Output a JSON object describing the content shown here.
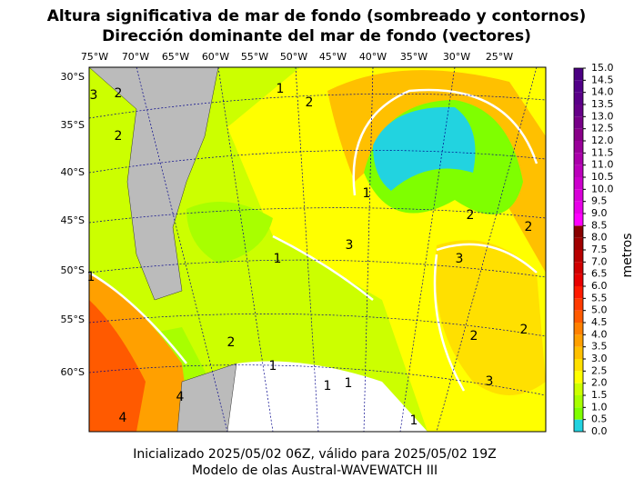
{
  "title": "Altura significativa de mar de fondo (sombreado y contornos)",
  "subtitle": "Dirección dominante del mar de fondo (vectores)",
  "map": {
    "lon_labels": [
      "75°W",
      "70°W",
      "65°W",
      "60°W",
      "55°W",
      "50°W",
      "45°W",
      "40°W",
      "35°W",
      "30°W",
      "25°W"
    ],
    "lat_labels": [
      "30°S",
      "35°S",
      "40°S",
      "45°S",
      "50°S",
      "55°S",
      "60°S"
    ],
    "contour_labels": [
      3,
      2,
      2,
      1,
      2,
      1,
      3,
      2,
      3,
      2,
      2,
      3,
      1,
      1,
      1,
      1,
      2,
      1,
      4,
      4,
      1,
      2
    ]
  },
  "colorbar": {
    "label": "metros",
    "ticks": [
      {
        "value": 0,
        "label": "0.0"
      },
      {
        "value": 0.5,
        "label": "0.5"
      },
      {
        "value": 1,
        "label": "1.0"
      },
      {
        "value": 1.5,
        "label": "1.5"
      },
      {
        "value": 2,
        "label": "2.0"
      },
      {
        "value": 2.5,
        "label": "2.5"
      },
      {
        "value": 3,
        "label": "3.0"
      },
      {
        "value": 3.5,
        "label": "3.5"
      },
      {
        "value": 4,
        "label": "4.0"
      },
      {
        "value": 4.5,
        "label": "4.5"
      },
      {
        "value": 5,
        "label": "5.0"
      },
      {
        "value": 5.5,
        "label": "5.5"
      },
      {
        "value": 6,
        "label": "6.0"
      },
      {
        "value": 6.5,
        "label": "6.5"
      },
      {
        "value": 7,
        "label": "7.0"
      },
      {
        "value": 7.5,
        "label": "7.5"
      },
      {
        "value": 8,
        "label": "8.0"
      },
      {
        "value": 8.5,
        "label": "8.5"
      },
      {
        "value": 9,
        "label": "9.0"
      },
      {
        "value": 9.5,
        "label": "9.5"
      },
      {
        "value": 10,
        "label": "10.0"
      },
      {
        "value": 10.5,
        "label": "10.5"
      },
      {
        "value": 11,
        "label": "11.0"
      },
      {
        "value": 11.5,
        "label": "11.5"
      },
      {
        "value": 12,
        "label": "12.0"
      },
      {
        "value": 12.5,
        "label": "12.5"
      },
      {
        "value": 13,
        "label": "13.0"
      },
      {
        "value": 13.5,
        "label": "13.5"
      },
      {
        "value": 14,
        "label": "14.0"
      },
      {
        "value": 14.5,
        "label": "14.5"
      },
      {
        "value": 15,
        "label": "15.0"
      }
    ],
    "colors": [
      "#22d3e0",
      "#7fff00",
      "#a8ff00",
      "#ccff00",
      "#ffff00",
      "#ffe000",
      "#ffc000",
      "#ffa000",
      "#ff8000",
      "#ff5a00",
      "#ff3a00",
      "#ff1a00",
      "#e80000",
      "#d00000",
      "#b80000",
      "#a00000",
      "#880000",
      "#ff00ff",
      "#e800e8",
      "#d800d8",
      "#cc00cc",
      "#bb00bb",
      "#aa00aa",
      "#990099",
      "#880088",
      "#770088",
      "#660088",
      "#5a0088",
      "#520088",
      "#4b0082"
    ]
  },
  "footer": [
    "Inicializado 2025/05/02 06Z, válido para 2025/05/02 19Z",
    "Modelo de olas Austral-WAVEWATCH III"
  ]
}
